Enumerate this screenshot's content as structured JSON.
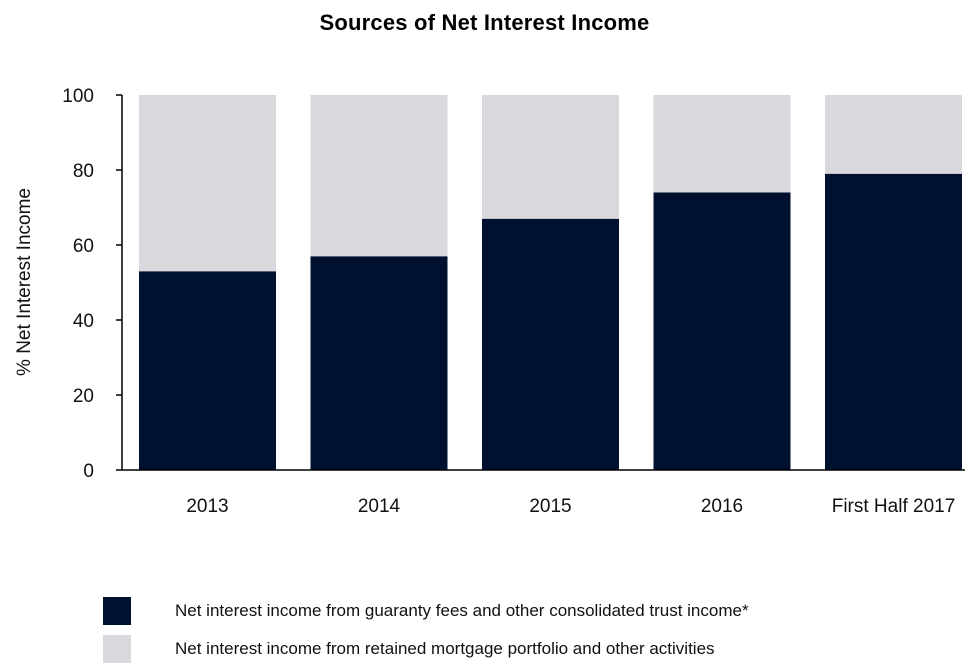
{
  "chart_data": {
    "type": "bar",
    "stacked": true,
    "title": "Sources of Net Interest Income",
    "ylabel": "% Net Interest Income",
    "xlabel": "",
    "ylim": [
      0,
      100
    ],
    "yticks": [
      0,
      20,
      40,
      60,
      80,
      100
    ],
    "categories": [
      "2013",
      "2014",
      "2015",
      "2016",
      "First Half 2017"
    ],
    "series": [
      {
        "name": "Net interest income from guaranty fees and other consolidated trust income*",
        "color": "#00112f",
        "values": [
          53,
          57,
          67,
          74,
          79
        ]
      },
      {
        "name": "Net interest income from retained mortgage portfolio and other activities",
        "color": "#d8d8dd",
        "values": [
          47,
          43,
          33,
          26,
          21
        ]
      }
    ],
    "legend_position": "bottom",
    "grid": false
  }
}
